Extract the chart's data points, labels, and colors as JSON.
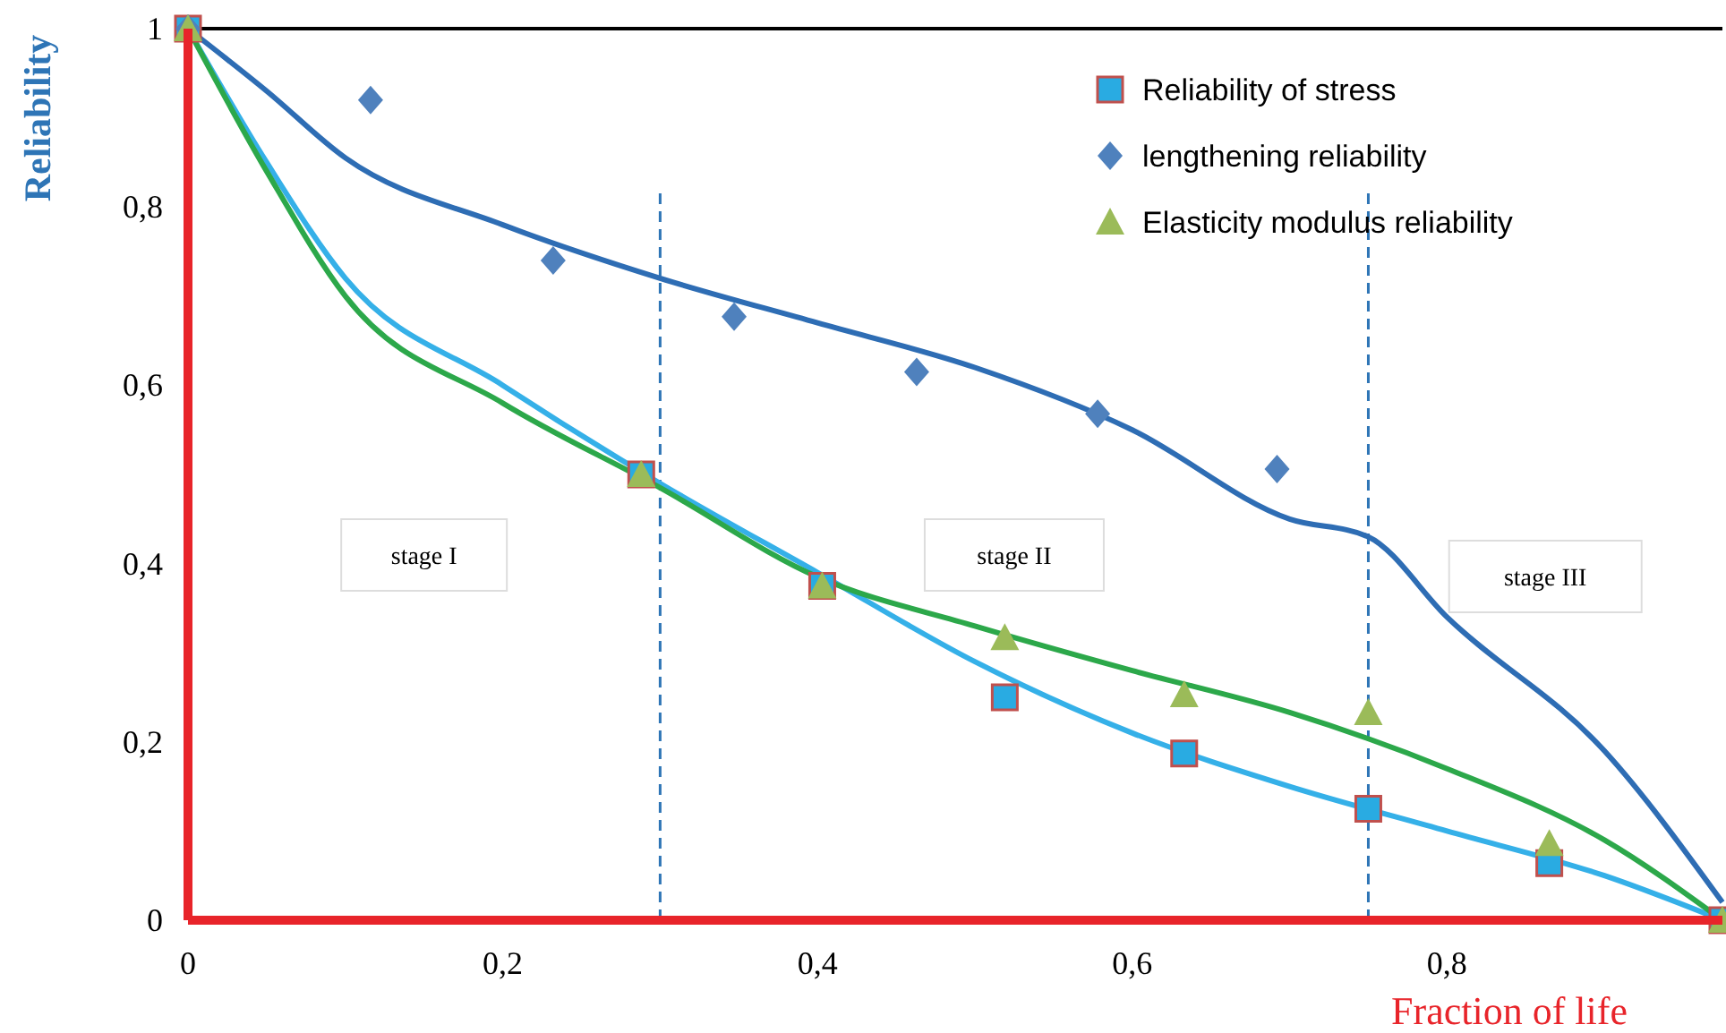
{
  "chart_data": {
    "type": "scatter",
    "xlabel": "Fraction of life",
    "ylabel": "Reliability",
    "xlim": [
      0,
      0.975
    ],
    "ylim": [
      0,
      1
    ],
    "xticks": [
      0,
      {
        "value": 0.2,
        "label": "0,2"
      },
      {
        "value": 0.4,
        "label": "0,4"
      },
      {
        "value": 0.6,
        "label": "0,6"
      },
      {
        "value": 0.8,
        "label": "0,8"
      }
    ],
    "yticks": [
      0,
      {
        "value": 0.2,
        "label": "0,2"
      },
      {
        "value": 0.4,
        "label": "0,4"
      },
      {
        "value": 0.6,
        "label": "0,6"
      },
      {
        "value": 0.8,
        "label": "0,8"
      },
      1
    ],
    "legend": "top right",
    "grid": false,
    "series": [
      {
        "type": "line",
        "color": "#2e6db4",
        "x": [
          0,
          0.05,
          0.1,
          0.2,
          0.3,
          0.4,
          0.5,
          0.6,
          0.7,
          0.75,
          0.8,
          0.9,
          0.975
        ],
        "values": [
          1,
          0.93,
          0.855,
          0.78,
          0.72,
          0.67,
          0.62,
          0.55,
          0.45,
          0.43,
          0.34,
          0.19,
          0.02
        ]
      },
      {
        "type": "line",
        "color": "#35b0e8",
        "x": [
          0,
          0.05,
          0.1,
          0.2,
          0.3,
          0.4,
          0.5,
          0.6,
          0.7,
          0.8,
          0.9,
          0.975
        ],
        "values": [
          1,
          0.85,
          0.72,
          0.6,
          0.49,
          0.39,
          0.29,
          0.21,
          0.15,
          0.1,
          0.05,
          0
        ]
      },
      {
        "type": "line",
        "color": "#2ca84a",
        "x": [
          0,
          0.05,
          0.1,
          0.2,
          0.3,
          0.4,
          0.5,
          0.6,
          0.7,
          0.8,
          0.9,
          0.975
        ],
        "values": [
          1,
          0.84,
          0.7,
          0.58,
          0.485,
          0.385,
          0.33,
          0.28,
          0.233,
          0.17,
          0.09,
          0
        ]
      },
      {
        "name": "Reliability of stress",
        "marker": "square",
        "color": "#29abe2",
        "x": [
          0,
          0.288,
          0.403,
          0.519,
          0.633,
          0.75,
          0.865,
          0.975
        ],
        "values": [
          1,
          0.5,
          0.375,
          0.25,
          0.187,
          0.125,
          0.064,
          0
        ]
      },
      {
        "name": "lengthening reliability",
        "marker": "diamond",
        "color": "#4f81bd",
        "x": [
          0,
          0.116,
          0.232,
          0.347,
          0.463,
          0.578,
          0.692
        ],
        "values": [
          1,
          0.92,
          0.74,
          0.677,
          0.615,
          0.568,
          0.506
        ]
      },
      {
        "name": "Elasticity modulus reliability",
        "marker": "triangle",
        "color": "#9bbb59",
        "x": [
          0,
          0.288,
          0.403,
          0.519,
          0.633,
          0.75,
          0.865,
          0.975
        ],
        "values": [
          1,
          0.5,
          0.375,
          0.317,
          0.253,
          0.233,
          0.086,
          0
        ]
      }
    ],
    "ref_lines": [
      {
        "axis": "x",
        "value": 0.3,
        "color": "#2e75b6",
        "line_style": "dashed"
      },
      {
        "axis": "x",
        "value": 0.75,
        "color": "#2e75b6",
        "line_style": "dashed"
      },
      {
        "axis": "y",
        "value": 1,
        "color": "#000000",
        "line_style": "solid"
      }
    ],
    "annotations": [
      "stage I",
      "stage II",
      "stage III"
    ]
  }
}
